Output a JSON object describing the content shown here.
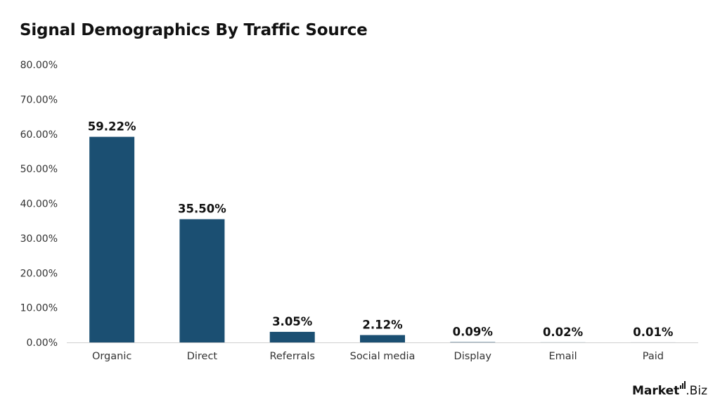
{
  "chart_data": {
    "type": "bar",
    "title": "Signal Demographics By Traffic Source",
    "categories": [
      "Organic",
      "Direct",
      "Referrals",
      "Social media",
      "Display",
      "Email",
      "Paid"
    ],
    "values": [
      59.22,
      35.5,
      3.05,
      2.12,
      0.09,
      0.02,
      0.01
    ],
    "data_labels": [
      "59.22%",
      "35.50%",
      "3.05%",
      "2.12%",
      "0.09%",
      "0.02%",
      "0.01%"
    ],
    "xlabel": "",
    "ylabel": "",
    "ylim": [
      0,
      80
    ],
    "yticks": [
      0,
      10,
      20,
      30,
      40,
      50,
      60,
      70,
      80
    ],
    "ytick_labels": [
      "0.00%",
      "10.00%",
      "20.00%",
      "30.00%",
      "40.00%",
      "50.00%",
      "60.00%",
      "70.00%",
      "80.00%"
    ],
    "grid": false,
    "legend": "none",
    "bar_color": "#1b4f72"
  },
  "logo": {
    "bold": "Market",
    "light": ".Biz"
  }
}
